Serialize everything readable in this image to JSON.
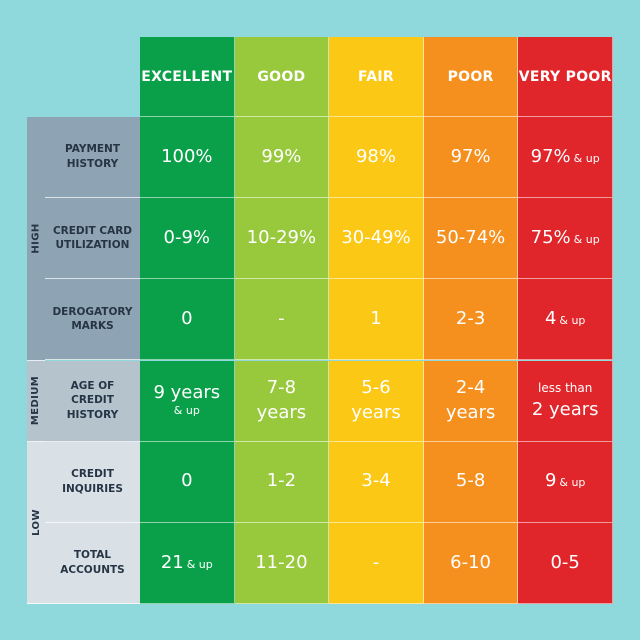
{
  "chart_data": {
    "type": "table",
    "title": "",
    "columns": [
      "EXCELLENT",
      "GOOD",
      "FAIR",
      "POOR",
      "VERY POOR"
    ],
    "column_colors": [
      "#0aa04a",
      "#98c93c",
      "#fcc816",
      "#f5901f",
      "#e0262b"
    ],
    "groups": [
      {
        "impact": "HIGH",
        "color": "#8ea3b3",
        "rows": [
          0,
          1,
          2
        ]
      },
      {
        "impact": "MEDIUM",
        "color": "#b5c3cd",
        "rows": [
          3
        ]
      },
      {
        "impact": "LOW",
        "color": "#dae1e6",
        "rows": [
          4,
          5
        ]
      }
    ],
    "rows": [
      {
        "factor": "PAYMENT HISTORY",
        "factor_lines": [
          "PAYMENT",
          "HISTORY"
        ],
        "values": [
          {
            "main": "100%"
          },
          {
            "main": "99%"
          },
          {
            "main": "98%"
          },
          {
            "main": "97%"
          },
          {
            "main": "97%",
            "suffix": "& up"
          }
        ]
      },
      {
        "factor": "CREDIT CARD UTILIZATION",
        "factor_lines": [
          "CREDIT CARD",
          "UTILIZATION"
        ],
        "values": [
          {
            "main": "0-9%"
          },
          {
            "main": "10-29%"
          },
          {
            "main": "30-49%"
          },
          {
            "main": "50-74%"
          },
          {
            "main": "75%",
            "suffix": "& up"
          }
        ]
      },
      {
        "factor": "DEROGATORY MARKS",
        "factor_lines": [
          "DEROGATORY",
          "MARKS"
        ],
        "values": [
          {
            "main": "0"
          },
          {
            "main": "-"
          },
          {
            "main": "1"
          },
          {
            "main": "2-3"
          },
          {
            "main": "4",
            "suffix": "& up"
          }
        ]
      },
      {
        "factor": "AGE OF CREDIT HISTORY",
        "factor_lines": [
          "AGE OF CREDIT",
          "HISTORY"
        ],
        "values": [
          {
            "main": "9 years",
            "below": "& up"
          },
          {
            "main": "7-8 years",
            "lines": [
              "7-8",
              "years"
            ]
          },
          {
            "main": "5-6 years",
            "lines": [
              "5-6",
              "years"
            ]
          },
          {
            "main": "2-4 years",
            "lines": [
              "2-4",
              "years"
            ]
          },
          {
            "main": "2 years",
            "above": "less than"
          }
        ]
      },
      {
        "factor": "CREDIT INQUIRIES",
        "factor_lines": [
          "CREDIT",
          "INQUIRIES"
        ],
        "values": [
          {
            "main": "0"
          },
          {
            "main": "1-2"
          },
          {
            "main": "3-4"
          },
          {
            "main": "5-8"
          },
          {
            "main": "9",
            "suffix": "& up"
          }
        ]
      },
      {
        "factor": "TOTAL ACCOUNTS",
        "factor_lines": [
          "TOTAL",
          "ACCOUNTS"
        ],
        "values": [
          {
            "main": "21",
            "suffix": "& up"
          },
          {
            "main": "11-20"
          },
          {
            "main": "-"
          },
          {
            "main": "6-10"
          },
          {
            "main": "0-5"
          }
        ]
      }
    ]
  }
}
